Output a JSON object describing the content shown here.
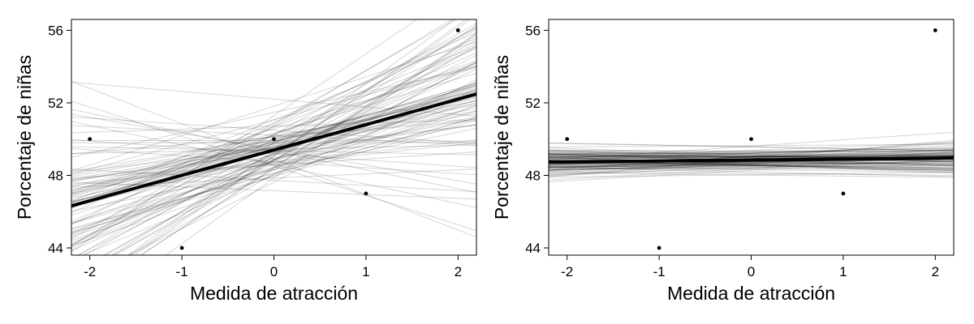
{
  "chart_data": [
    {
      "type": "line",
      "title": "",
      "xlabel": "Medida de atracción",
      "ylabel": "Porcentaje de niñas",
      "xlim": [
        -2.2,
        2.2
      ],
      "ylim": [
        43.6,
        56.6
      ],
      "x_ticks": [
        -2,
        -1,
        0,
        1,
        2
      ],
      "x_tick_labels": [
        "-2",
        "-1",
        "0",
        "1",
        "2"
      ],
      "y_ticks": [
        44,
        48,
        52,
        56
      ],
      "y_tick_labels": [
        "44",
        "48",
        "52",
        "56"
      ],
      "grid": false,
      "points": [
        {
          "x": -2,
          "y": 50.0
        },
        {
          "x": -1,
          "y": 44.0
        },
        {
          "x": 0,
          "y": 50.0
        },
        {
          "x": 1,
          "y": 47.0
        },
        {
          "x": 2,
          "y": 56.0
        }
      ],
      "fit_line": {
        "intercept": 49.4,
        "slope": 1.4
      },
      "simulated_lines": {
        "count": 100,
        "intercept_mean": 49.4,
        "intercept_sd": 0.9,
        "slope_mean": 1.4,
        "slope_sd": 1.2,
        "seed": 7
      }
    },
    {
      "type": "line",
      "title": "",
      "xlabel": "Medida de atracción",
      "ylabel": "Porcentaje de niñas",
      "xlim": [
        -2.2,
        2.2
      ],
      "ylim": [
        43.6,
        56.6
      ],
      "x_ticks": [
        -2,
        -1,
        0,
        1,
        2
      ],
      "x_tick_labels": [
        "-2",
        "-1",
        "0",
        "1",
        "2"
      ],
      "y_ticks": [
        44,
        48,
        52,
        56
      ],
      "y_tick_labels": [
        "44",
        "48",
        "52",
        "56"
      ],
      "grid": false,
      "points": [
        {
          "x": -2,
          "y": 50.0
        },
        {
          "x": -1,
          "y": 44.0
        },
        {
          "x": 0,
          "y": 50.0
        },
        {
          "x": 1,
          "y": 47.0
        },
        {
          "x": 2,
          "y": 56.0
        }
      ],
      "fit_line": {
        "intercept": 48.85,
        "slope": 0.05
      },
      "simulated_lines": {
        "count": 100,
        "intercept_mean": 48.85,
        "intercept_sd": 0.33,
        "slope_mean": 0.05,
        "slope_sd": 0.15,
        "seed": 11
      }
    }
  ]
}
